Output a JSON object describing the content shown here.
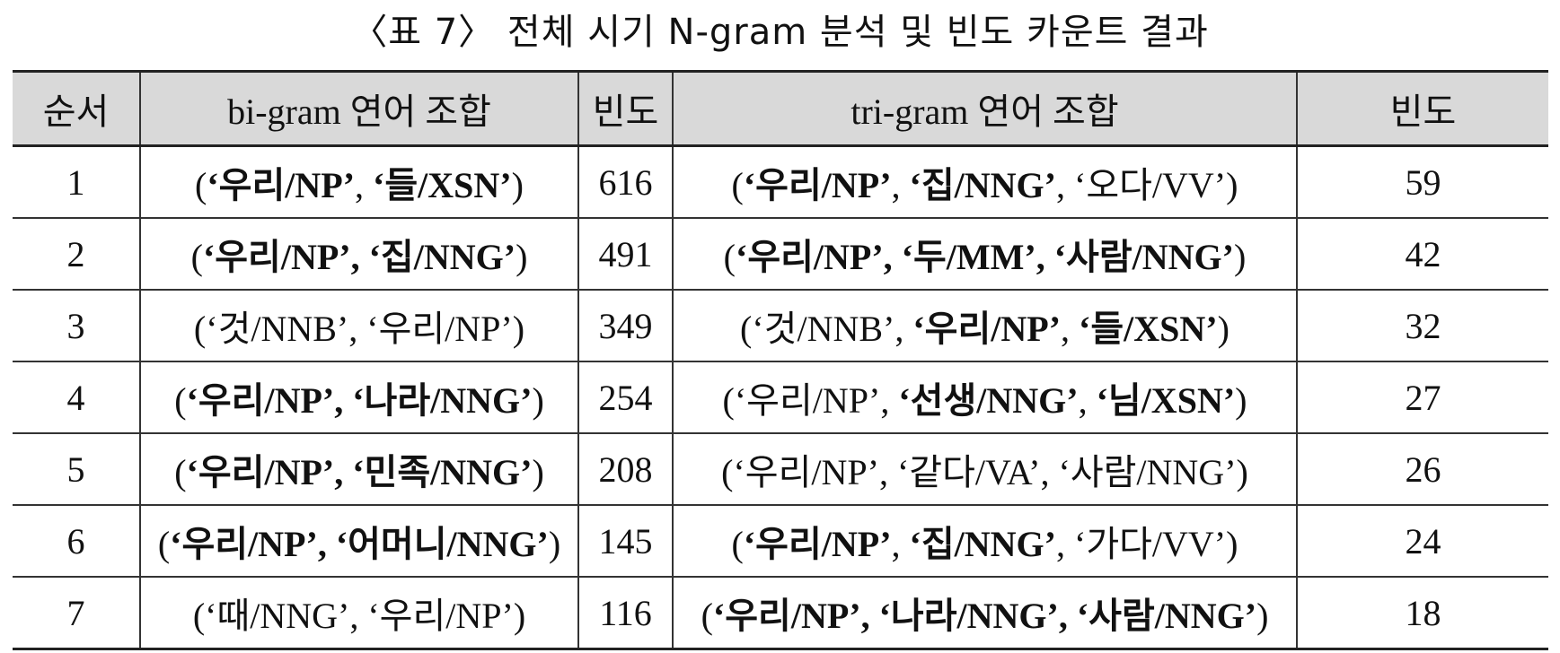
{
  "caption": "〈표 7〉 전체 시기 N-gram 분석 및 빈도 카운트 결과",
  "headers": {
    "order": "순서",
    "bigram": "bi-gram 연어 조합",
    "bigram_freq": "빈도",
    "trigram": "tri-gram 연어 조합",
    "trigram_freq": "빈도"
  },
  "rows": [
    {
      "order": "1",
      "bigram": [
        {
          "t": "(",
          "w": "n"
        },
        {
          "t": "‘우리/NP’",
          "w": "b"
        },
        {
          "t": ", ",
          "w": "n"
        },
        {
          "t": "‘들/XSN’",
          "w": "b"
        },
        {
          "t": ")",
          "w": "n"
        }
      ],
      "bigram_freq": "616",
      "trigram": [
        {
          "t": "(",
          "w": "n"
        },
        {
          "t": "‘우리/NP’",
          "w": "b"
        },
        {
          "t": ", ",
          "w": "n"
        },
        {
          "t": "‘집/NNG’",
          "w": "b"
        },
        {
          "t": ", ‘오다/VV’)",
          "w": "n"
        }
      ],
      "trigram_freq": "59"
    },
    {
      "order": "2",
      "bigram": [
        {
          "t": "(",
          "w": "n"
        },
        {
          "t": "‘우리/NP’, ‘집/NNG’",
          "w": "b"
        },
        {
          "t": ")",
          "w": "n"
        }
      ],
      "bigram_freq": "491",
      "trigram": [
        {
          "t": "(",
          "w": "n"
        },
        {
          "t": "‘우리/NP’, ‘두/MM’, ‘사람/NNG’",
          "w": "b"
        },
        {
          "t": ")",
          "w": "n"
        }
      ],
      "trigram_freq": "42"
    },
    {
      "order": "3",
      "bigram": [
        {
          "t": "(‘것/NNB’, ‘우리/NP’)",
          "w": "n"
        }
      ],
      "bigram_freq": "349",
      "trigram": [
        {
          "t": "(‘것/NNB’, ",
          "w": "n"
        },
        {
          "t": "‘우리/NP’",
          "w": "b"
        },
        {
          "t": ", ",
          "w": "n"
        },
        {
          "t": "‘들/XSN’",
          "w": "b"
        },
        {
          "t": ")",
          "w": "n"
        }
      ],
      "trigram_freq": "32"
    },
    {
      "order": "4",
      "bigram": [
        {
          "t": "(",
          "w": "n"
        },
        {
          "t": "‘우리/NP’, ‘나라/NNG’",
          "w": "b"
        },
        {
          "t": ")",
          "w": "n"
        }
      ],
      "bigram_freq": "254",
      "trigram": [
        {
          "t": "(‘우리/NP’, ",
          "w": "n"
        },
        {
          "t": "‘선생/NNG’",
          "w": "b"
        },
        {
          "t": ", ",
          "w": "n"
        },
        {
          "t": "‘님/XSN’",
          "w": "b"
        },
        {
          "t": ")",
          "w": "n"
        }
      ],
      "trigram_freq": "27"
    },
    {
      "order": "5",
      "bigram": [
        {
          "t": "(",
          "w": "n"
        },
        {
          "t": "‘우리/NP’, ‘민족/NNG’",
          "w": "b"
        },
        {
          "t": ")",
          "w": "n"
        }
      ],
      "bigram_freq": "208",
      "trigram": [
        {
          "t": "(‘우리/NP’, ‘같다/VA’, ‘사람/NNG’)",
          "w": "n"
        }
      ],
      "trigram_freq": "26"
    },
    {
      "order": "6",
      "bigram": [
        {
          "t": "(",
          "w": "n"
        },
        {
          "t": "‘우리/NP’, ‘어머니/NNG’",
          "w": "b"
        },
        {
          "t": ")",
          "w": "n"
        }
      ],
      "bigram_freq": "145",
      "trigram": [
        {
          "t": "(",
          "w": "n"
        },
        {
          "t": "‘우리/NP’",
          "w": "b"
        },
        {
          "t": ", ",
          "w": "n"
        },
        {
          "t": "‘집/NNG’",
          "w": "b"
        },
        {
          "t": ", ‘가다/VV’)",
          "w": "n"
        }
      ],
      "trigram_freq": "24"
    },
    {
      "order": "7",
      "bigram": [
        {
          "t": "(‘때/NNG’, ‘우리/NP’)",
          "w": "n"
        }
      ],
      "bigram_freq": "116",
      "trigram": [
        {
          "t": "(",
          "w": "n"
        },
        {
          "t": "‘우리/NP’, ‘나라/NNG’, ‘사람/NNG’",
          "w": "b"
        },
        {
          "t": ")",
          "w": "n"
        }
      ],
      "trigram_freq": "18"
    }
  ]
}
